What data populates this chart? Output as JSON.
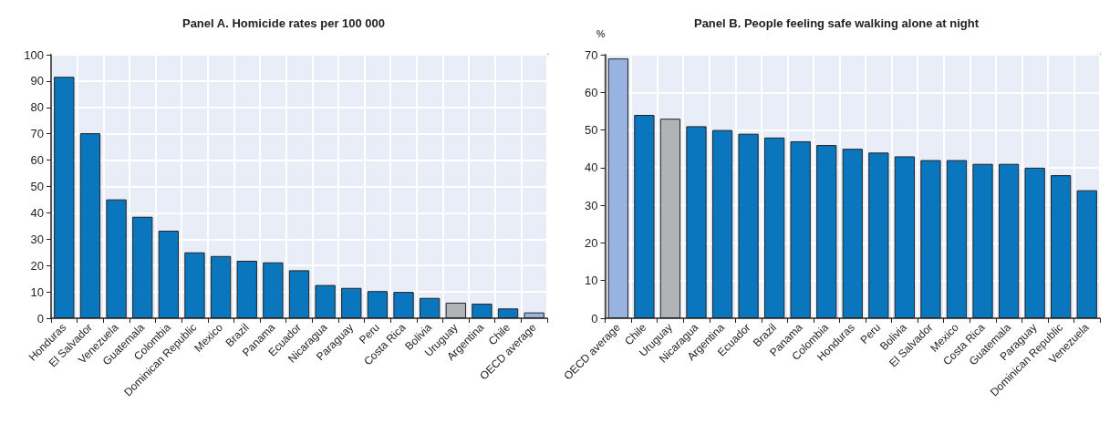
{
  "chart_data": [
    {
      "type": "bar",
      "title": "Panel A. Homicide rates per 100 000",
      "categories": [
        "Honduras",
        "El Salvador",
        "Venezuela",
        "Guatemala",
        "Colombia",
        "Dominican Republic",
        "Mexico",
        "Brazil",
        "Panama",
        "Ecuador",
        "Nicaragua",
        "Paraguay",
        "Peru",
        "Costa Rica",
        "Bolivia",
        "Uruguay",
        "Argentina",
        "Chile",
        "OECD average"
      ],
      "values": [
        91.6,
        70.2,
        45.1,
        38.5,
        33.2,
        25.0,
        23.6,
        21.8,
        21.2,
        18.2,
        12.6,
        11.5,
        10.3,
        10.0,
        7.7,
        5.9,
        5.5,
        3.7,
        2.2
      ],
      "colors": [
        "#0a76bd",
        "#0a76bd",
        "#0a76bd",
        "#0a76bd",
        "#0a76bd",
        "#0a76bd",
        "#0a76bd",
        "#0a76bd",
        "#0a76bd",
        "#0a76bd",
        "#0a76bd",
        "#0a76bd",
        "#0a76bd",
        "#0a76bd",
        "#0a76bd",
        "#b2b3b7",
        "#0a76bd",
        "#0a76bd",
        "#98b3df"
      ],
      "ylim": [
        0,
        100
      ],
      "yticks": [
        0,
        10,
        20,
        30,
        40,
        50,
        60,
        70,
        80,
        90,
        100
      ],
      "grid": true
    },
    {
      "type": "bar",
      "title": "Panel B. People feeling safe walking alone at night",
      "ylabel": "%",
      "categories": [
        "OECD average",
        "Chile",
        "Uruguay",
        "Nicaragua",
        "Argentina",
        "Ecuador",
        "Brazil",
        "Panama",
        "Colombia",
        "Honduras",
        "Peru",
        "Bolivia",
        "El Salvador",
        "Mexico",
        "Costa Rica",
        "Guatemala",
        "Paraguay",
        "Dominican Republic",
        "Venezuela"
      ],
      "values": [
        69,
        54,
        53,
        51,
        50,
        49,
        48,
        47,
        46,
        45,
        44,
        43,
        42,
        42,
        41,
        41,
        40,
        38,
        34
      ],
      "colors": [
        "#98b3df",
        "#0a76bd",
        "#b2b3b7",
        "#0a76bd",
        "#0a76bd",
        "#0a76bd",
        "#0a76bd",
        "#0a76bd",
        "#0a76bd",
        "#0a76bd",
        "#0a76bd",
        "#0a76bd",
        "#0a76bd",
        "#0a76bd",
        "#0a76bd",
        "#0a76bd",
        "#0a76bd",
        "#0a76bd",
        "#0a76bd"
      ],
      "ylim": [
        0,
        70
      ],
      "yticks": [
        0,
        10,
        20,
        30,
        40,
        50,
        60,
        70
      ],
      "grid": true
    }
  ]
}
